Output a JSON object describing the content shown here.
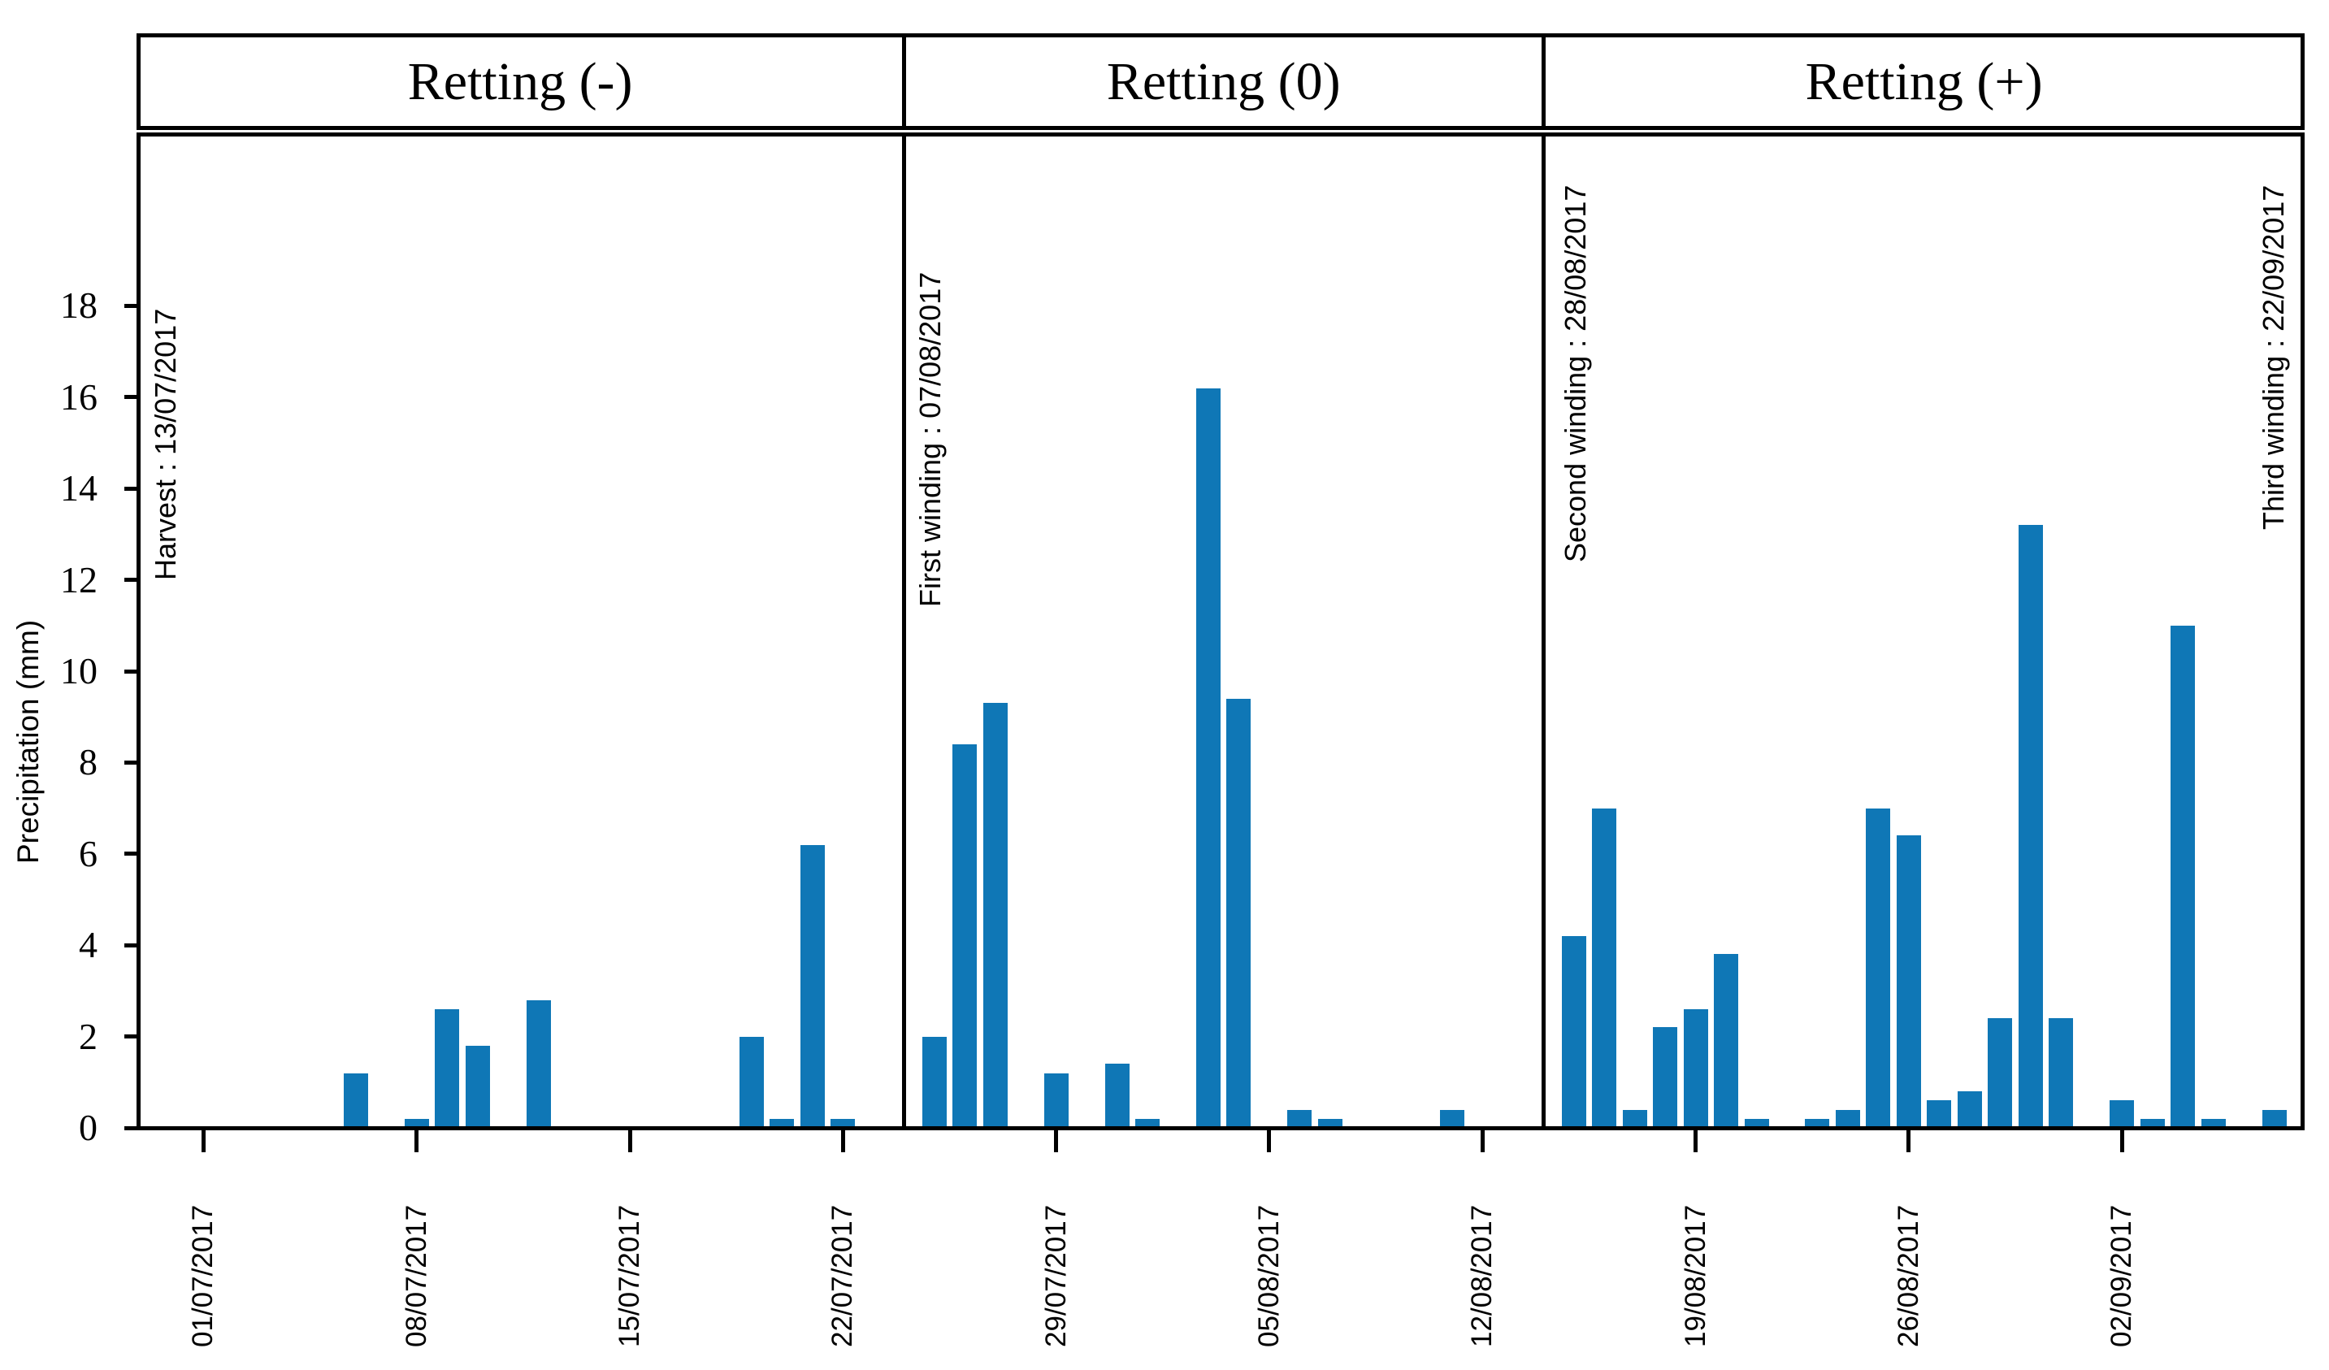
{
  "chart_data": {
    "type": "bar",
    "title": "",
    "ylabel": "Precipitation (mm)",
    "xlabel": "",
    "ylim": [
      0,
      21.7
    ],
    "yticks": [
      0,
      2,
      4,
      6,
      8,
      10,
      12,
      14,
      16,
      18
    ],
    "grid": "off",
    "legend": "none",
    "bar_color": "#0f77b6",
    "axis_color": "#000000",
    "panels": [
      {
        "title": "Retting (-)",
        "day_range": [
          -2.2,
          23
        ],
        "xticks": [
          {
            "day": 0,
            "label": "01/07/2017"
          },
          {
            "day": 7,
            "label": "08/07/2017"
          },
          {
            "day": 14,
            "label": "15/07/2017"
          },
          {
            "day": 21,
            "label": "22/07/2017"
          }
        ],
        "bars": [
          {
            "date": "06/07/2017",
            "day": 5,
            "value": 1.2
          },
          {
            "date": "08/07/2017",
            "day": 7,
            "value": 0.2
          },
          {
            "date": "09/07/2017",
            "day": 8,
            "value": 2.6
          },
          {
            "date": "10/07/2017",
            "day": 9,
            "value": 1.8
          },
          {
            "date": "12/07/2017",
            "day": 11,
            "value": 2.8
          },
          {
            "date": "19/07/2017",
            "day": 18,
            "value": 2.0
          },
          {
            "date": "20/07/2017",
            "day": 19,
            "value": 0.2
          },
          {
            "date": "21/07/2017",
            "day": 20,
            "value": 6.2
          },
          {
            "date": "22/07/2017",
            "day": 21,
            "value": 0.2
          }
        ],
        "annotations": [
          {
            "name": "harvest",
            "text": "Harvest : 13/07/2017",
            "x": 183,
            "top": 380
          }
        ]
      },
      {
        "title": "Retting (0)",
        "day_range": [
          23,
          44
        ],
        "xticks": [
          {
            "day": 28,
            "label": "29/07/2017"
          },
          {
            "day": 35,
            "label": "05/08/2017"
          },
          {
            "day": 42,
            "label": "12/08/2017"
          }
        ],
        "bars": [
          {
            "date": "25/07/2017",
            "day": 24,
            "value": 2.0
          },
          {
            "date": "26/07/2017",
            "day": 25,
            "value": 8.4
          },
          {
            "date": "27/07/2017",
            "day": 26,
            "value": 9.3
          },
          {
            "date": "29/07/2017",
            "day": 28,
            "value": 1.2
          },
          {
            "date": "31/07/2017",
            "day": 30,
            "value": 1.4
          },
          {
            "date": "01/08/2017",
            "day": 31,
            "value": 0.2
          },
          {
            "date": "03/08/2017",
            "day": 33,
            "value": 16.2
          },
          {
            "date": "04/08/2017",
            "day": 34,
            "value": 9.4
          },
          {
            "date": "06/08/2017",
            "day": 36,
            "value": 0.4
          },
          {
            "date": "07/08/2017",
            "day": 37,
            "value": 0.2
          },
          {
            "date": "11/08/2017",
            "day": 41,
            "value": 0.4
          }
        ],
        "annotations": [
          {
            "name": "first-winding",
            "text": "First winding : 07/08/2017",
            "x": 1124,
            "top": 335
          }
        ]
      },
      {
        "title": "Retting (+)",
        "day_range": [
          44,
          69
        ],
        "xticks": [
          {
            "day": 49,
            "label": "19/08/2017"
          },
          {
            "day": 56,
            "label": "26/08/2017"
          },
          {
            "day": 63,
            "label": "02/09/2017"
          }
        ],
        "bars": [
          {
            "date": "15/08/2017",
            "day": 45,
            "value": 4.2
          },
          {
            "date": "16/08/2017",
            "day": 46,
            "value": 7.0
          },
          {
            "date": "17/08/2017",
            "day": 47,
            "value": 0.4
          },
          {
            "date": "18/08/2017",
            "day": 48,
            "value": 2.2
          },
          {
            "date": "19/08/2017",
            "day": 49,
            "value": 2.6
          },
          {
            "date": "20/08/2017",
            "day": 50,
            "value": 3.8
          },
          {
            "date": "21/08/2017",
            "day": 51,
            "value": 0.2
          },
          {
            "date": "23/08/2017",
            "day": 53,
            "value": 0.2
          },
          {
            "date": "24/08/2017",
            "day": 54,
            "value": 0.4
          },
          {
            "date": "25/08/2017",
            "day": 55,
            "value": 7.0
          },
          {
            "date": "26/08/2017",
            "day": 56,
            "value": 6.4
          },
          {
            "date": "27/08/2017",
            "day": 57,
            "value": 0.6
          },
          {
            "date": "28/08/2017",
            "day": 58,
            "value": 0.8
          },
          {
            "date": "29/08/2017",
            "day": 59,
            "value": 2.4
          },
          {
            "date": "30/08/2017",
            "day": 60,
            "value": 13.2
          },
          {
            "date": "31/08/2017",
            "day": 61,
            "value": 2.4
          },
          {
            "date": "02/09/2017",
            "day": 63,
            "value": 0.6
          },
          {
            "date": "03/09/2017",
            "day": 64,
            "value": 0.2
          },
          {
            "date": "04/09/2017",
            "day": 65,
            "value": 11.0
          },
          {
            "date": "05/09/2017",
            "day": 66,
            "value": 0.2
          },
          {
            "date": "07/09/2017",
            "day": 68,
            "value": 0.4
          }
        ],
        "annotations": [
          {
            "name": "second-winding",
            "text": "Second winding : 28/08/2017",
            "x": 1918,
            "top": 228
          },
          {
            "name": "third-winding",
            "text": "Third winding : 22/09/2017",
            "x": 2777,
            "top": 228
          }
        ]
      }
    ]
  }
}
